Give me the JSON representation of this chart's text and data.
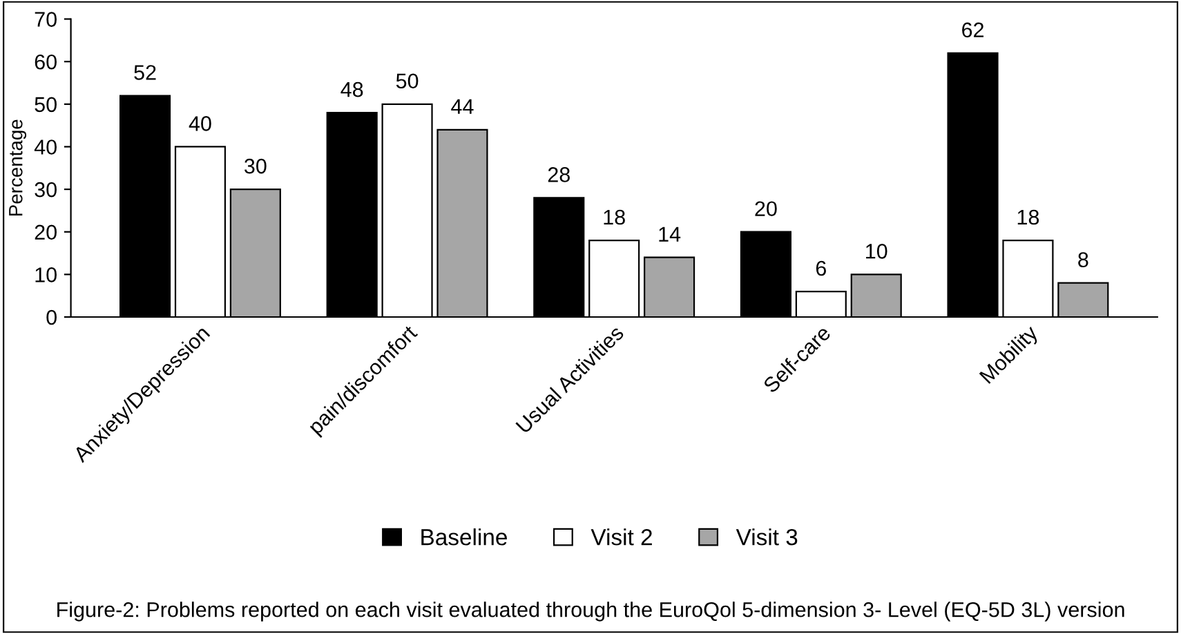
{
  "chart_data": {
    "type": "bar",
    "ylabel": "Percentage",
    "categories": [
      "Anxiety/Depression",
      "pain/discomfort",
      "Usual Activities",
      "Self-care",
      "Mobility"
    ],
    "series": [
      {
        "name": "Baseline",
        "color": "#000000",
        "values": [
          52,
          48,
          28,
          20,
          62
        ]
      },
      {
        "name": "Visit 2",
        "color": "#ffffff",
        "values": [
          40,
          50,
          18,
          6,
          18
        ]
      },
      {
        "name": "Visit 3",
        "color": "#a6a6a6",
        "values": [
          30,
          44,
          14,
          10,
          8
        ]
      }
    ],
    "ylim": [
      0,
      70
    ],
    "yticks": [
      0,
      10,
      20,
      30,
      40,
      50,
      60,
      70
    ],
    "data_labels": true,
    "legend": "bottom",
    "grid": false,
    "annotations": [
      "Figure-2: Problems reported on each visit evaluated through the EuroQol 5-dimension 3- Level (EQ-5D 3L) version"
    ]
  }
}
